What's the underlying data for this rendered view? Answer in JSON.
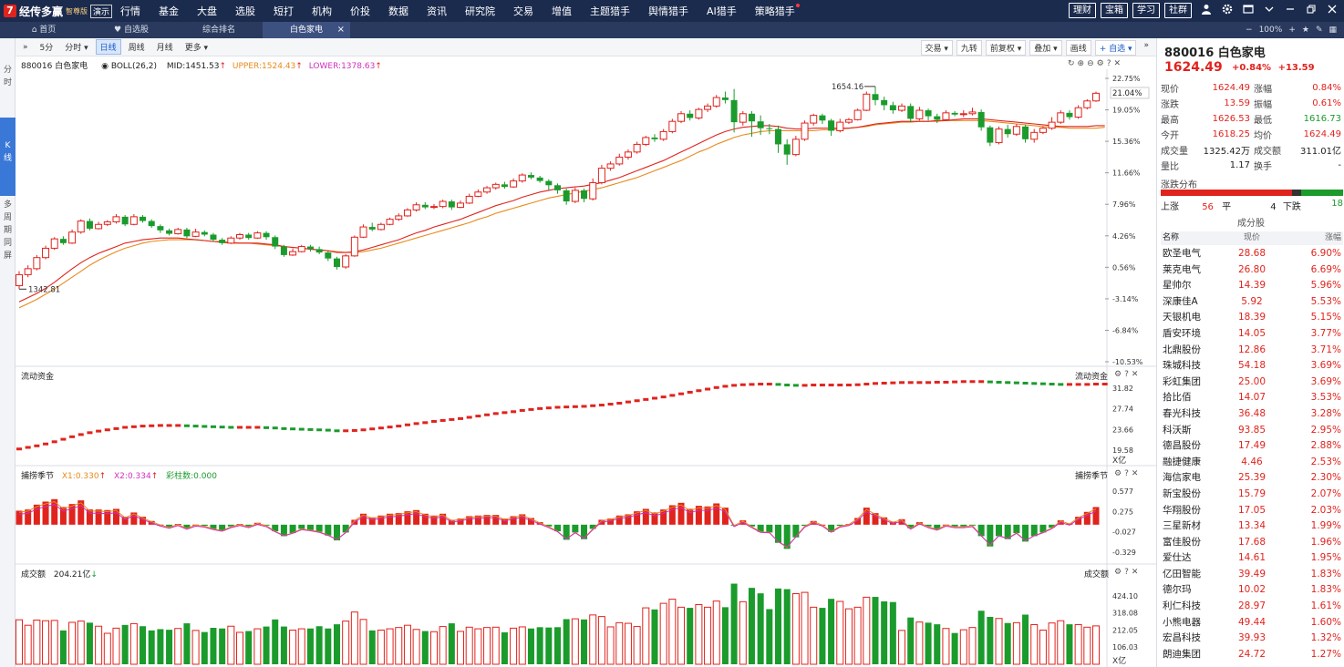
{
  "app": {
    "logo_mark": "7",
    "logo_name": "经传多赢",
    "edition": "智尊版",
    "demo": "演示",
    "menu": [
      "行情",
      "基金",
      "大盘",
      "选股",
      "短打",
      "机构",
      "价投",
      "数据",
      "资讯",
      "研究院",
      "交易",
      "增值",
      "主题猎手",
      "舆情猎手",
      "AI猎手",
      "策略猎手"
    ],
    "right_buttons": [
      "理财",
      "宝箱",
      "学习",
      "社群"
    ],
    "right_icons": [
      "user-icon",
      "gear-icon",
      "window-icon",
      "chevron-down-icon",
      "restore-icon",
      "close-icon"
    ]
  },
  "tabs": {
    "items": [
      {
        "label": "首页",
        "icon": "home-icon"
      },
      {
        "label": "自选股",
        "icon": "heart-icon"
      },
      {
        "label": "综合排名",
        "icon": ""
      },
      {
        "label": "白色家电",
        "icon": "",
        "close": "×"
      }
    ],
    "zoom_minus": "−",
    "zoom": "100%",
    "zoom_plus": "+"
  },
  "leftbar": {
    "fenshi": "分\n时",
    "kline": "K\n线",
    "multi": "多\n周\n期\n同\n屏"
  },
  "toolbar": {
    "expand": "»",
    "left": [
      "5分",
      "分时 ▾",
      "日线",
      "周线",
      "月线",
      "更多 ▾"
    ],
    "active_index": 2,
    "right": [
      "交易 ▾",
      "九转",
      "前复权 ▾",
      "叠加 ▾",
      "画线",
      "+ 自选 ▾"
    ]
  },
  "main_chart": {
    "code_name": "880016 白色家电",
    "indicator": "BOLL(26,2)",
    "mid": "MID:1451.53",
    "upper": "UPPER:1524.43",
    "lower": "LOWER:1378.63",
    "high_label": "1654.16",
    "low_label": "1342.81",
    "y_ticks": [
      "22.75%",
      "19.05%",
      "15.36%",
      "11.66%",
      "7.96%",
      "4.26%",
      "0.56%",
      "-3.14%",
      "-6.84%",
      "-10.53%"
    ],
    "last_pct": "21.04%"
  },
  "liquidity_chart": {
    "title": "流动资金",
    "title_right": "流动资金",
    "y_ticks": [
      "31.82",
      "27.74",
      "23.66",
      "19.58"
    ],
    "unit": "X亿"
  },
  "catch_chart": {
    "title": "捕捞季节",
    "x1": "X1:0.330",
    "x2": "X2:0.334",
    "bars": "彩柱数:0.000",
    "title_right": "捕捞季节",
    "y_ticks": [
      "0.577",
      "0.275",
      "-0.027",
      "-0.329"
    ]
  },
  "volume_chart": {
    "title": "成交额",
    "value": "204.21亿",
    "title_right": "成交额",
    "y_ticks": [
      "424.10",
      "318.08",
      "212.05",
      "106.03"
    ],
    "unit": "X亿"
  },
  "chart_data": {
    "type": "candlestick",
    "title": "880016 白色家电",
    "ylim_pct": [
      -10.53,
      22.75
    ],
    "candles": [
      [
        -1.6,
        -0.3,
        -2.0,
        0.1
      ],
      [
        -0.3,
        0.4,
        -0.6,
        0.8
      ],
      [
        0.4,
        1.7,
        0.2,
        2.0
      ],
      [
        1.7,
        2.8,
        1.5,
        3.1
      ],
      [
        2.8,
        3.9,
        2.6,
        4.1
      ],
      [
        3.9,
        3.4,
        3.2,
        4.2
      ],
      [
        3.4,
        4.7,
        3.3,
        5.0
      ],
      [
        4.7,
        6.0,
        4.5,
        6.2
      ],
      [
        6.0,
        5.1,
        4.9,
        6.3
      ],
      [
        5.1,
        5.6,
        5.0,
        5.9
      ],
      [
        5.6,
        5.9,
        5.4,
        6.1
      ],
      [
        5.9,
        6.5,
        5.7,
        6.8
      ],
      [
        6.5,
        5.6,
        5.4,
        6.7
      ],
      [
        5.6,
        6.5,
        5.5,
        6.8
      ],
      [
        6.5,
        6.0,
        5.8,
        6.7
      ],
      [
        6.0,
        5.4,
        5.2,
        6.2
      ],
      [
        5.4,
        4.9,
        4.6,
        5.6
      ],
      [
        4.9,
        4.5,
        4.3,
        5.1
      ],
      [
        4.5,
        5.0,
        4.4,
        5.2
      ],
      [
        5.0,
        4.2,
        4.0,
        5.2
      ],
      [
        4.2,
        4.7,
        4.1,
        5.1
      ],
      [
        4.7,
        4.4,
        4.2,
        4.9
      ],
      [
        4.4,
        3.8,
        3.6,
        4.6
      ],
      [
        3.8,
        3.4,
        3.2,
        4.0
      ],
      [
        3.4,
        4.0,
        3.3,
        4.2
      ],
      [
        4.0,
        4.4,
        3.8,
        4.6
      ],
      [
        4.4,
        4.0,
        3.8,
        4.6
      ],
      [
        4.0,
        4.6,
        3.9,
        4.8
      ],
      [
        4.6,
        4.1,
        3.8,
        4.8
      ],
      [
        4.1,
        3.0,
        2.7,
        4.3
      ],
      [
        3.0,
        2.0,
        1.8,
        3.2
      ],
      [
        2.0,
        2.4,
        1.9,
        2.8
      ],
      [
        2.4,
        3.0,
        2.3,
        3.2
      ],
      [
        3.0,
        2.7,
        2.4,
        3.2
      ],
      [
        2.7,
        2.3,
        2.1,
        3.0
      ],
      [
        2.3,
        1.6,
        1.3,
        2.5
      ],
      [
        1.6,
        0.6,
        0.3,
        1.8
      ],
      [
        0.6,
        1.9,
        0.4,
        2.1
      ],
      [
        1.9,
        4.1,
        1.8,
        4.3
      ],
      [
        4.1,
        5.3,
        4.0,
        5.6
      ],
      [
        5.3,
        5.0,
        4.8,
        5.8
      ],
      [
        5.0,
        5.6,
        4.9,
        5.8
      ],
      [
        5.6,
        6.2,
        5.5,
        6.4
      ],
      [
        6.2,
        6.6,
        6.0,
        6.9
      ],
      [
        6.6,
        7.3,
        6.5,
        7.5
      ],
      [
        7.3,
        7.9,
        7.1,
        8.2
      ],
      [
        7.9,
        7.6,
        7.4,
        8.2
      ],
      [
        7.6,
        7.7,
        7.4,
        8.0
      ],
      [
        7.7,
        8.3,
        7.5,
        8.5
      ],
      [
        8.3,
        7.6,
        7.3,
        8.5
      ],
      [
        7.6,
        8.1,
        7.5,
        8.4
      ],
      [
        8.1,
        8.9,
        8.0,
        9.2
      ],
      [
        8.9,
        9.4,
        8.8,
        9.7
      ],
      [
        9.4,
        9.9,
        9.2,
        10.1
      ],
      [
        9.9,
        10.3,
        9.7,
        10.5
      ],
      [
        10.3,
        10.0,
        9.8,
        10.6
      ],
      [
        10.0,
        10.7,
        9.9,
        11.0
      ],
      [
        10.7,
        11.4,
        10.5,
        11.6
      ],
      [
        11.4,
        11.1,
        10.9,
        11.7
      ],
      [
        11.1,
        10.7,
        10.5,
        11.3
      ],
      [
        10.7,
        10.2,
        9.6,
        10.9
      ],
      [
        10.2,
        9.6,
        9.2,
        10.4
      ],
      [
        9.6,
        8.3,
        7.9,
        9.8
      ],
      [
        8.3,
        9.6,
        8.1,
        9.9
      ],
      [
        9.6,
        8.6,
        8.2,
        9.8
      ],
      [
        8.6,
        10.5,
        8.4,
        11.0
      ],
      [
        10.5,
        12.2,
        10.3,
        12.6
      ],
      [
        12.2,
        12.7,
        11.9,
        13.0
      ],
      [
        12.7,
        13.5,
        12.5,
        13.9
      ],
      [
        13.5,
        14.1,
        13.2,
        14.4
      ],
      [
        14.1,
        15.0,
        13.9,
        15.3
      ],
      [
        15.0,
        15.8,
        14.8,
        16.0
      ],
      [
        15.8,
        15.6,
        15.3,
        16.2
      ],
      [
        15.6,
        16.5,
        15.4,
        16.8
      ],
      [
        16.5,
        17.7,
        16.3,
        18.0
      ],
      [
        17.7,
        18.6,
        17.5,
        18.9
      ],
      [
        18.6,
        18.1,
        17.8,
        19.0
      ],
      [
        18.1,
        19.1,
        17.9,
        19.3
      ],
      [
        19.1,
        19.5,
        18.8,
        19.8
      ],
      [
        19.5,
        20.5,
        19.3,
        20.8
      ],
      [
        20.5,
        20.2,
        19.8,
        21.2
      ],
      [
        20.2,
        17.6,
        16.4,
        21.5
      ],
      [
        17.6,
        18.6,
        17.2,
        18.9
      ],
      [
        18.6,
        17.7,
        15.9,
        18.9
      ],
      [
        17.7,
        16.9,
        16.1,
        18.4
      ],
      [
        16.9,
        16.8,
        16.2,
        17.4
      ],
      [
        16.8,
        15.0,
        14.0,
        17.2
      ],
      [
        15.0,
        13.8,
        12.6,
        15.6
      ],
      [
        13.8,
        15.6,
        13.6,
        16.0
      ],
      [
        15.6,
        17.5,
        15.4,
        17.8
      ],
      [
        17.5,
        18.4,
        17.2,
        18.6
      ],
      [
        18.4,
        17.8,
        17.4,
        18.6
      ],
      [
        17.8,
        16.6,
        16.0,
        18.0
      ],
      [
        16.6,
        17.6,
        16.4,
        18.0
      ],
      [
        17.6,
        17.9,
        17.4,
        18.1
      ],
      [
        17.9,
        19.0,
        17.8,
        19.2
      ],
      [
        19.0,
        20.9,
        18.9,
        21.2
      ],
      [
        20.9,
        20.2,
        19.6,
        21.8
      ],
      [
        20.2,
        19.6,
        19.0,
        20.6
      ],
      [
        19.6,
        19.0,
        18.6,
        20.0
      ],
      [
        19.0,
        19.5,
        18.8,
        19.8
      ],
      [
        19.5,
        18.0,
        17.6,
        19.8
      ],
      [
        18.0,
        19.0,
        17.8,
        19.4
      ],
      [
        19.0,
        18.3,
        17.8,
        19.2
      ],
      [
        18.3,
        17.9,
        17.5,
        18.6
      ],
      [
        17.9,
        18.7,
        17.8,
        19.0
      ],
      [
        18.7,
        18.5,
        18.3,
        18.9
      ],
      [
        18.5,
        18.6,
        18.2,
        19.0
      ],
      [
        18.6,
        18.8,
        18.4,
        19.3
      ],
      [
        18.8,
        17.0,
        16.6,
        19.1
      ],
      [
        17.0,
        15.2,
        14.8,
        17.2
      ],
      [
        15.2,
        16.8,
        15.0,
        17.1
      ],
      [
        16.8,
        16.2,
        15.8,
        17.3
      ],
      [
        16.2,
        17.1,
        16.0,
        17.4
      ],
      [
        17.1,
        15.6,
        15.2,
        17.3
      ],
      [
        15.6,
        16.4,
        15.2,
        16.8
      ],
      [
        16.4,
        16.9,
        16.2,
        17.1
      ],
      [
        16.9,
        17.6,
        16.7,
        18.2
      ],
      [
        17.6,
        18.7,
        17.4,
        19.0
      ],
      [
        18.7,
        18.2,
        17.9,
        19.0
      ],
      [
        18.2,
        19.3,
        18.0,
        19.6
      ],
      [
        19.3,
        20.1,
        19.1,
        20.3
      ],
      [
        20.1,
        21.0,
        20.0,
        21.2
      ]
    ],
    "mid_pct": [
      -3.5,
      -3.0,
      -2.5,
      -1.9,
      -1.2,
      -0.4,
      0.4,
      1.1,
      1.7,
      2.2,
      2.6,
      3.0,
      3.4,
      3.6,
      3.8,
      3.9,
      4.0,
      4.0,
      4.0,
      3.9,
      3.8,
      3.7,
      3.6,
      3.5,
      3.4,
      3.4,
      3.4,
      3.4,
      3.3,
      3.2,
      3.0,
      2.9,
      2.8,
      2.7,
      2.6,
      2.5,
      2.3,
      2.3,
      2.4,
      2.6,
      2.9,
      3.2,
      3.5,
      3.8,
      4.2,
      4.6,
      4.9,
      5.3,
      5.6,
      5.9,
      6.2,
      6.6,
      7.0,
      7.4,
      7.8,
      8.1,
      8.4,
      8.8,
      9.1,
      9.4,
      9.6,
      9.8,
      9.9,
      10.0,
      10.1,
      10.3,
      10.5,
      10.8,
      11.1,
      11.5,
      11.9,
      12.3,
      12.7,
      13.1,
      13.6,
      14.1,
      14.6,
      15.1,
      15.6,
      16.1,
      16.5,
      16.8,
      17.0,
      17.1,
      17.2,
      17.2,
      17.1,
      16.9,
      16.8,
      16.8,
      16.9,
      16.9,
      16.9,
      16.9,
      16.9,
      17.0,
      17.2,
      17.4,
      17.5,
      17.6,
      17.7,
      17.7,
      17.7,
      17.7,
      17.8,
      17.8,
      17.9,
      18.0,
      18.0,
      18.0,
      17.9,
      17.8,
      17.7,
      17.6,
      17.5,
      17.4,
      17.3,
      17.2,
      17.1,
      17.1,
      17.1,
      17.1,
      17.2,
      17.2
    ],
    "mid2_pct": [
      -4.2,
      -3.7,
      -3.2,
      -2.6,
      -2.0,
      -1.3,
      -0.6,
      0.1,
      0.8,
      1.4,
      1.9,
      2.4,
      2.8,
      3.1,
      3.4,
      3.6,
      3.7,
      3.8,
      3.8,
      3.8,
      3.8,
      3.7,
      3.6,
      3.6,
      3.5,
      3.4,
      3.4,
      3.3,
      3.2,
      3.1,
      3.0,
      2.9,
      2.8,
      2.7,
      2.6,
      2.5,
      2.4,
      2.3,
      2.3,
      2.4,
      2.6,
      2.8,
      3.1,
      3.4,
      3.7,
      4.0,
      4.3,
      4.6,
      4.9,
      5.2,
      5.5,
      5.8,
      6.2,
      6.5,
      6.9,
      7.2,
      7.5,
      7.8,
      8.1,
      8.4,
      8.7,
      8.9,
      9.1,
      9.3,
      9.5,
      9.7,
      9.9,
      10.2,
      10.5,
      10.8,
      11.1,
      11.5,
      11.9,
      12.3,
      12.7,
      13.1,
      13.6,
      14.1,
      14.5,
      15.0,
      15.4,
      15.8,
      16.1,
      16.3,
      16.5,
      16.6,
      16.6,
      16.6,
      16.6,
      16.6,
      16.6,
      16.7,
      16.7,
      16.8,
      16.9,
      17.0,
      17.1,
      17.3,
      17.4,
      17.5,
      17.6,
      17.6,
      17.7,
      17.7,
      17.7,
      17.8,
      17.8,
      17.8,
      17.8,
      17.8,
      17.7,
      17.6,
      17.5,
      17.4,
      17.3,
      17.2,
      17.1,
      17.0,
      17.0,
      16.9,
      16.9,
      16.9,
      16.9,
      17.0
    ]
  },
  "quote": {
    "code_name": "880016 白色家电",
    "price": "1624.49",
    "change_pct": "+0.84%",
    "change": "+13.59",
    "rows": [
      [
        "现价",
        "1624.49",
        "涨幅",
        "0.84%"
      ],
      [
        "涨跌",
        "13.59",
        "振幅",
        "0.61%"
      ],
      [
        "最高",
        "1626.53",
        "最低",
        "1616.73"
      ],
      [
        "今开",
        "1618.25",
        "均价",
        "1624.49"
      ],
      [
        "成交量",
        "1325.42万",
        "成交额",
        "311.01亿"
      ],
      [
        "量比",
        "1.17",
        "换手",
        "-"
      ]
    ],
    "dist_title": "涨跌分布",
    "up_label": "上涨",
    "up": "56",
    "flat_label": "平",
    "flat": "4",
    "down_label": "下跌",
    "down": "18",
    "colors": {
      "up": "#e0231d",
      "down": "#1a9b2c",
      "flat": "#333333"
    }
  },
  "constituents": {
    "title": "成分股",
    "headers": [
      "名称",
      "现价",
      "涨幅"
    ],
    "rows": [
      [
        "欧圣电气",
        "28.68",
        "6.90%"
      ],
      [
        "莱克电气",
        "26.80",
        "6.69%"
      ],
      [
        "星帅尔",
        "14.39",
        "5.96%"
      ],
      [
        "深康佳A",
        "5.92",
        "5.53%"
      ],
      [
        "天银机电",
        "18.39",
        "5.15%"
      ],
      [
        "盾安环境",
        "14.05",
        "3.77%"
      ],
      [
        "北鼎股份",
        "12.86",
        "3.71%"
      ],
      [
        "珠城科技",
        "54.18",
        "3.69%"
      ],
      [
        "彩虹集团",
        "25.00",
        "3.69%"
      ],
      [
        "拾比佰",
        "14.07",
        "3.53%"
      ],
      [
        "春光科技",
        "36.48",
        "3.28%"
      ],
      [
        "科沃斯",
        "93.85",
        "2.95%"
      ],
      [
        "德昌股份",
        "17.49",
        "2.88%"
      ],
      [
        "融捷健康",
        "4.46",
        "2.53%"
      ],
      [
        "海信家电",
        "25.39",
        "2.30%"
      ],
      [
        "新宝股份",
        "15.79",
        "2.07%"
      ],
      [
        "华翔股份",
        "17.05",
        "2.03%"
      ],
      [
        "三星新材",
        "13.34",
        "1.99%"
      ],
      [
        "富佳股份",
        "17.68",
        "1.96%"
      ],
      [
        "爱仕达",
        "14.61",
        "1.95%"
      ],
      [
        "亿田智能",
        "39.49",
        "1.83%"
      ],
      [
        "德尔玛",
        "10.02",
        "1.83%"
      ],
      [
        "利仁科技",
        "28.97",
        "1.61%"
      ],
      [
        "小熊电器",
        "49.44",
        "1.60%"
      ],
      [
        "宏昌科技",
        "39.93",
        "1.32%"
      ],
      [
        "朗迪集团",
        "24.72",
        "1.27%"
      ]
    ]
  }
}
